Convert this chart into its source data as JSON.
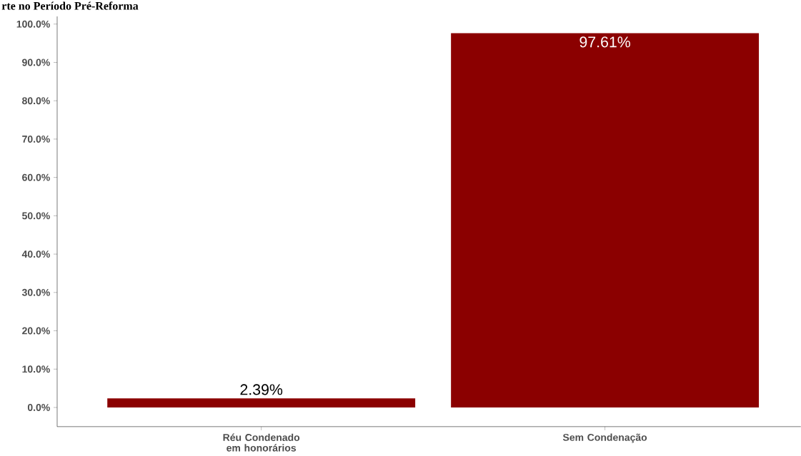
{
  "chart_data": {
    "type": "bar",
    "title": "rte no Período Pré-Reforma",
    "categories": [
      "Réu Condenado em honorários",
      "Sem Condenação"
    ],
    "values": [
      2.39,
      97.61
    ],
    "color": "#8b0000",
    "value_labels": [
      "2.39%",
      "97.61%"
    ],
    "ylim": [
      -5,
      102
    ],
    "yticks": [
      {
        "value": 0,
        "label": "0.0%"
      },
      {
        "value": 10,
        "label": "10.0%"
      },
      {
        "value": 20,
        "label": "20.0%"
      },
      {
        "value": 30,
        "label": "30.0%"
      },
      {
        "value": 40,
        "label": "40.0%"
      },
      {
        "value": 50,
        "label": "50.0%"
      },
      {
        "value": 60,
        "label": "60.0%"
      },
      {
        "value": 70,
        "label": "70.0%"
      },
      {
        "value": 80,
        "label": "80.0%"
      },
      {
        "value": 90,
        "label": "90.0%"
      },
      {
        "value": 100,
        "label": "100.0%"
      }
    ],
    "grid": false
  }
}
